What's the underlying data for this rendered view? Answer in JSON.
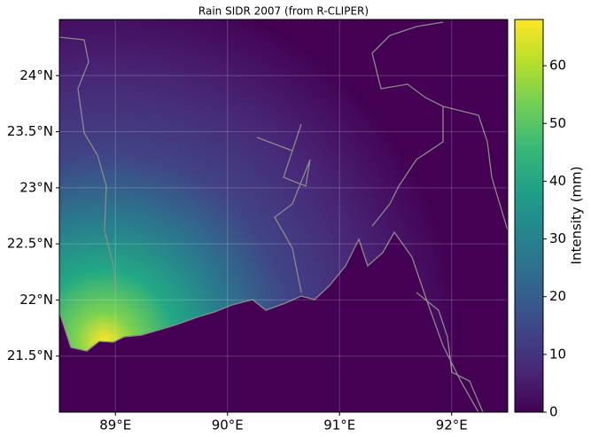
{
  "chart_data": {
    "type": "map",
    "title": "Rain SIDR 2007 (from R-CLIPER)",
    "xlim": [
      88.5,
      92.5
    ],
    "xticks": [
      {
        "value": 89,
        "label": "89°E"
      },
      {
        "value": 90,
        "label": "90°E"
      },
      {
        "value": 91,
        "label": "91°E"
      },
      {
        "value": 92,
        "label": "92°E"
      }
    ],
    "ylim": [
      21,
      24.5
    ],
    "yticks": [
      {
        "value": 21.5,
        "label": "21.5°N"
      },
      {
        "value": 22,
        "label": "22°N"
      },
      {
        "value": 22.5,
        "label": "22.5°N"
      },
      {
        "value": 23,
        "label": "23°N"
      },
      {
        "value": 23.5,
        "label": "23.5°N"
      },
      {
        "value": 24,
        "label": "24°N"
      }
    ],
    "grid": true,
    "colorbar": {
      "label": "Intensity (mm)",
      "lim": [
        0,
        68
      ],
      "ticks": [
        0,
        10,
        20,
        30,
        40,
        50,
        60
      ],
      "colormap": "viridis"
    }
  }
}
